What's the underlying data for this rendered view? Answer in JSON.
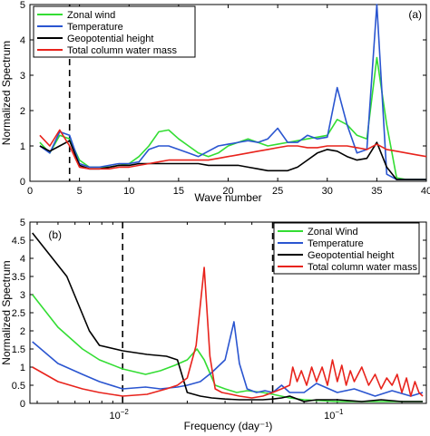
{
  "chart_data": [
    {
      "panel_label": "(a)",
      "type": "line",
      "xlabel": "Wave number",
      "ylabel": "Normalized Spectrum",
      "xlim": [
        0,
        40
      ],
      "ylim": [
        0,
        5
      ],
      "xticks": [
        0,
        5,
        10,
        15,
        20,
        25,
        30,
        35,
        40
      ],
      "yticks": [
        0,
        1,
        2,
        3,
        4,
        5
      ],
      "legend_position": "top-left",
      "vlines": [
        4
      ],
      "series": [
        {
          "name": "Zonal wind",
          "color": "#33dd33",
          "x": [
            1,
            2,
            3,
            4,
            5,
            6,
            7,
            8,
            9,
            10,
            11,
            12,
            13,
            14,
            15,
            16,
            17,
            18,
            19,
            20,
            21,
            22,
            23,
            24,
            25,
            26,
            27,
            28,
            29,
            30,
            31,
            32,
            33,
            34,
            35,
            36,
            37,
            38,
            39,
            40
          ],
          "y": [
            1.1,
            0.8,
            1.3,
            1.2,
            0.6,
            0.4,
            0.4,
            0.4,
            0.45,
            0.5,
            0.7,
            1.0,
            1.4,
            1.45,
            1.2,
            1.0,
            0.8,
            0.7,
            0.8,
            1.0,
            1.1,
            1.2,
            1.1,
            1.0,
            1.05,
            1.1,
            1.15,
            1.2,
            1.25,
            1.3,
            1.75,
            1.6,
            1.3,
            1.2,
            3.5,
            1.6,
            0.1,
            0.05,
            0.05,
            0.05
          ]
        },
        {
          "name": "Temperature",
          "color": "#2a55d0",
          "x": [
            1,
            2,
            3,
            4,
            5,
            6,
            7,
            8,
            9,
            10,
            11,
            12,
            13,
            14,
            15,
            16,
            17,
            18,
            19,
            20,
            21,
            22,
            23,
            24,
            25,
            26,
            27,
            28,
            29,
            30,
            31,
            32,
            33,
            34,
            35,
            36,
            37,
            38,
            39,
            40
          ],
          "y": [
            1.0,
            0.8,
            1.4,
            1.3,
            0.5,
            0.4,
            0.4,
            0.45,
            0.5,
            0.5,
            0.55,
            0.9,
            1.0,
            1.0,
            0.9,
            0.8,
            0.7,
            0.85,
            1.0,
            1.05,
            1.1,
            1.15,
            1.1,
            1.2,
            1.5,
            1.1,
            1.1,
            1.3,
            1.2,
            1.25,
            2.65,
            1.6,
            0.8,
            0.9,
            5.0,
            0.2,
            0.05,
            0.05,
            0.05,
            0.05
          ]
        },
        {
          "name": "Geopotential height",
          "color": "#000000",
          "x": [
            1,
            2,
            3,
            4,
            5,
            6,
            7,
            8,
            9,
            10,
            11,
            12,
            13,
            14,
            15,
            16,
            17,
            18,
            19,
            20,
            21,
            22,
            23,
            24,
            25,
            26,
            27,
            28,
            29,
            30,
            31,
            32,
            33,
            34,
            35,
            36,
            37,
            38,
            39,
            40
          ],
          "y": [
            1.0,
            0.85,
            1.0,
            1.15,
            0.45,
            0.35,
            0.35,
            0.4,
            0.45,
            0.45,
            0.5,
            0.5,
            0.5,
            0.5,
            0.5,
            0.5,
            0.5,
            0.45,
            0.45,
            0.45,
            0.45,
            0.4,
            0.35,
            0.3,
            0.3,
            0.3,
            0.4,
            0.6,
            0.8,
            0.9,
            0.85,
            0.7,
            0.6,
            0.65,
            1.1,
            0.4,
            0.05,
            0.05,
            0.05,
            0.05
          ]
        },
        {
          "name": "Total column water mass",
          "color": "#e8231c",
          "x": [
            1,
            2,
            3,
            4,
            5,
            6,
            7,
            8,
            9,
            10,
            11,
            12,
            13,
            14,
            15,
            16,
            17,
            18,
            19,
            20,
            21,
            22,
            23,
            24,
            25,
            26,
            27,
            28,
            29,
            30,
            31,
            32,
            33,
            34,
            35,
            36,
            37,
            38,
            39,
            40
          ],
          "y": [
            1.3,
            1.0,
            1.45,
            1.0,
            0.4,
            0.35,
            0.35,
            0.35,
            0.4,
            0.4,
            0.45,
            0.5,
            0.55,
            0.6,
            0.6,
            0.6,
            0.6,
            0.6,
            0.65,
            0.7,
            0.75,
            0.8,
            0.85,
            0.9,
            0.95,
            1.0,
            1.0,
            0.95,
            0.95,
            1.0,
            1.0,
            1.0,
            0.95,
            0.9,
            1.05,
            0.9,
            0.85,
            0.8,
            0.75,
            0.7
          ]
        }
      ]
    },
    {
      "panel_label": "(b)",
      "type": "line",
      "xlabel": "Frequency (day⁻¹)",
      "ylabel": "Normalized Spectrum",
      "xscale": "log",
      "xlim": [
        0.0037,
        0.26
      ],
      "ylim": [
        0,
        5
      ],
      "xticks": [
        {
          "value": 0.01,
          "label_base": "10",
          "label_exp": "−2"
        },
        {
          "value": 0.1,
          "label_base": "10",
          "label_exp": "−1"
        }
      ],
      "yticks": [
        0,
        0.5,
        1,
        1.5,
        2,
        2.5,
        3,
        3.5,
        4,
        4.5,
        5
      ],
      "legend_position": "top-right",
      "vlines": [
        0.01,
        0.05
      ],
      "series": [
        {
          "name": "Zonal Wind",
          "color": "#33dd33",
          "x": [
            0.0038,
            0.005,
            0.0065,
            0.0078,
            0.01,
            0.0128,
            0.015,
            0.0175,
            0.02,
            0.0222,
            0.024,
            0.027,
            0.03,
            0.034,
            0.038,
            0.045,
            0.05,
            0.06,
            0.07,
            0.1,
            0.15,
            0.2,
            0.25
          ],
          "y": [
            3.0,
            2.1,
            1.5,
            1.2,
            0.95,
            0.8,
            0.9,
            1.05,
            1.2,
            1.5,
            1.2,
            0.5,
            0.4,
            0.3,
            0.35,
            0.3,
            0.25,
            0.15,
            0.1,
            0.05,
            0.05,
            0.05,
            0.05
          ]
        },
        {
          "name": "Temperature",
          "color": "#2a55d0",
          "x": [
            0.0038,
            0.005,
            0.0065,
            0.0078,
            0.01,
            0.0128,
            0.015,
            0.018,
            0.02,
            0.023,
            0.026,
            0.03,
            0.033,
            0.035,
            0.038,
            0.042,
            0.046,
            0.05,
            0.055,
            0.06,
            0.07,
            0.08,
            0.1,
            0.12,
            0.15,
            0.18,
            0.22,
            0.25
          ],
          "y": [
            1.7,
            1.1,
            0.8,
            0.6,
            0.4,
            0.45,
            0.4,
            0.45,
            0.5,
            0.6,
            0.85,
            1.2,
            2.25,
            1.1,
            0.4,
            0.3,
            0.35,
            0.3,
            0.5,
            0.3,
            0.3,
            0.55,
            0.3,
            0.4,
            0.2,
            0.35,
            0.2,
            0.3
          ]
        },
        {
          "name": "Geopotential height",
          "color": "#000000",
          "x": [
            0.0038,
            0.0055,
            0.007,
            0.0078,
            0.01,
            0.013,
            0.016,
            0.018,
            0.02,
            0.023,
            0.026,
            0.03,
            0.035,
            0.04,
            0.045,
            0.05,
            0.055,
            0.06,
            0.07,
            0.08,
            0.1,
            0.13,
            0.16,
            0.2,
            0.25
          ],
          "y": [
            4.7,
            3.5,
            2.0,
            1.6,
            1.45,
            1.35,
            1.3,
            1.2,
            0.3,
            0.2,
            0.15,
            0.12,
            0.1,
            0.1,
            0.1,
            0.12,
            0.15,
            0.2,
            0.05,
            0.1,
            0.1,
            0.05,
            0.1,
            0.05,
            0.05
          ]
        },
        {
          "name": "Total column water mass",
          "color": "#e8231c",
          "x": [
            0.0038,
            0.005,
            0.0065,
            0.0078,
            0.01,
            0.013,
            0.016,
            0.018,
            0.02,
            0.022,
            0.024,
            0.0255,
            0.027,
            0.029,
            0.032,
            0.035,
            0.04,
            0.045,
            0.05,
            0.055,
            0.06,
            0.062,
            0.065,
            0.068,
            0.072,
            0.076,
            0.08,
            0.085,
            0.09,
            0.095,
            0.1,
            0.105,
            0.11,
            0.115,
            0.12,
            0.13,
            0.14,
            0.15,
            0.16,
            0.17,
            0.18,
            0.19,
            0.2,
            0.21,
            0.22,
            0.23,
            0.24,
            0.25
          ],
          "y": [
            1.0,
            0.6,
            0.4,
            0.3,
            0.2,
            0.25,
            0.4,
            0.5,
            0.7,
            1.6,
            3.75,
            1.3,
            0.4,
            0.3,
            0.25,
            0.2,
            0.15,
            0.2,
            0.3,
            0.4,
            0.5,
            1.0,
            0.6,
            0.9,
            0.5,
            1.0,
            0.6,
            1.0,
            0.5,
            1.2,
            0.6,
            1.05,
            0.5,
            0.9,
            0.6,
            1.0,
            0.5,
            0.8,
            0.4,
            0.7,
            0.5,
            0.8,
            0.3,
            0.7,
            0.2,
            0.6,
            0.3,
            0.2
          ]
        }
      ]
    }
  ]
}
